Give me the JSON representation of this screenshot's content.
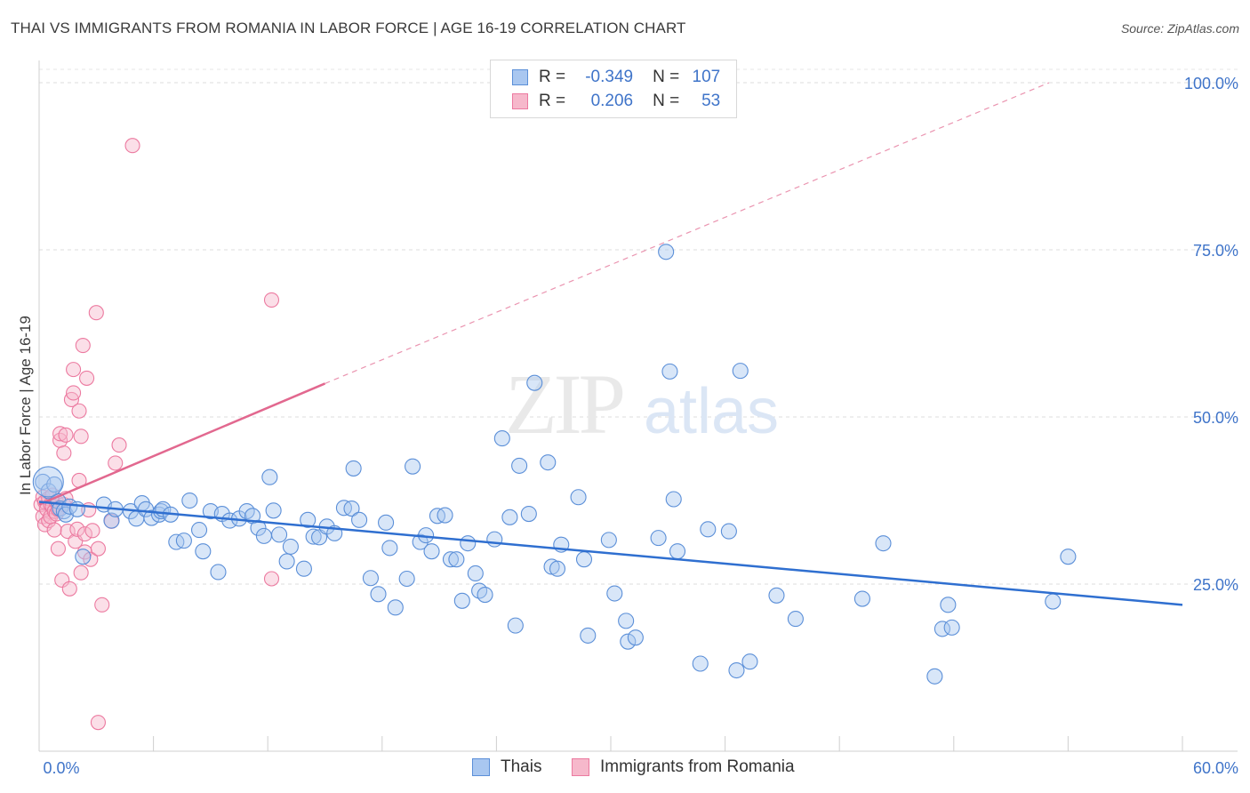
{
  "title": "THAI VS IMMIGRANTS FROM ROMANIA IN LABOR FORCE | AGE 16-19 CORRELATION CHART",
  "source": "Source: ZipAtlas.com",
  "watermark": {
    "zip": "ZIP",
    "atlas": "atlas"
  },
  "legend": {
    "rows": [
      {
        "r_label": "R =",
        "r_value": "-0.349",
        "n_label": "N =",
        "n_value": "107"
      },
      {
        "r_label": "R =",
        "r_value": "0.206",
        "n_label": "N =",
        "n_value": "53"
      }
    ]
  },
  "bottom_legend": {
    "thais": "Thais",
    "romania": "Immigrants from Romania"
  },
  "colors": {
    "blue_fill": "#a9c7f0",
    "blue_stroke": "#5b8fd8",
    "blue_line": "#2f6fd0",
    "pink_fill": "#f6b8cb",
    "pink_stroke": "#ec7aa0",
    "pink_line": "#e2688f"
  },
  "chart_data": {
    "type": "scatter",
    "title": "THAI VS IMMIGRANTS FROM ROMANIA IN LABOR FORCE | AGE 16-19 CORRELATION CHART",
    "xlabel": "",
    "ylabel": "In Labor Force | Age 16-19",
    "xlim": [
      0,
      60
    ],
    "ylim": [
      0,
      102
    ],
    "x_tick_labels": [
      "0.0%",
      "60.0%"
    ],
    "y_ticks": [
      25,
      50,
      75,
      100
    ],
    "y_tick_labels": [
      "25.0%",
      "50.0%",
      "75.0%",
      "100.0%"
    ],
    "grid": true,
    "legend_position": "top-center",
    "series": [
      {
        "name": "Thais",
        "r": -0.349,
        "n": 107,
        "trend": {
          "x": [
            0,
            60
          ],
          "y": [
            37.3,
            21.9
          ]
        },
        "points": [
          [
            0.2,
            40.3
          ],
          [
            0.5,
            38.9
          ],
          [
            0.8,
            39.9
          ],
          [
            1.0,
            37.4
          ],
          [
            1.1,
            36.3
          ],
          [
            1.3,
            35.9
          ],
          [
            1.4,
            35.4
          ],
          [
            1.6,
            36.6
          ],
          [
            2.0,
            36.2
          ],
          [
            2.3,
            29.1
          ],
          [
            3.4,
            36.9
          ],
          [
            3.8,
            34.5
          ],
          [
            4.0,
            36.2
          ],
          [
            4.8,
            35.9
          ],
          [
            5.1,
            34.8
          ],
          [
            5.4,
            37.1
          ],
          [
            5.6,
            36.2
          ],
          [
            5.9,
            34.9
          ],
          [
            6.3,
            35.4
          ],
          [
            6.4,
            35.9
          ],
          [
            6.5,
            36.2
          ],
          [
            6.9,
            35.4
          ],
          [
            7.2,
            31.3
          ],
          [
            7.6,
            31.5
          ],
          [
            7.9,
            37.5
          ],
          [
            8.4,
            33.1
          ],
          [
            8.6,
            29.9
          ],
          [
            9.0,
            35.9
          ],
          [
            9.4,
            26.8
          ],
          [
            9.6,
            35.5
          ],
          [
            10.0,
            34.5
          ],
          [
            10.5,
            34.8
          ],
          [
            10.9,
            35.9
          ],
          [
            11.2,
            35.2
          ],
          [
            11.5,
            33.4
          ],
          [
            11.8,
            32.2
          ],
          [
            12.1,
            41.0
          ],
          [
            12.3,
            36.0
          ],
          [
            12.6,
            32.4
          ],
          [
            13.0,
            28.4
          ],
          [
            13.2,
            30.6
          ],
          [
            13.9,
            27.3
          ],
          [
            14.1,
            34.6
          ],
          [
            14.4,
            32.1
          ],
          [
            14.7,
            32.0
          ],
          [
            15.1,
            33.6
          ],
          [
            15.5,
            32.6
          ],
          [
            16.0,
            36.4
          ],
          [
            16.4,
            36.3
          ],
          [
            16.5,
            42.3
          ],
          [
            16.8,
            34.6
          ],
          [
            17.4,
            25.9
          ],
          [
            17.8,
            23.5
          ],
          [
            18.2,
            34.2
          ],
          [
            18.4,
            30.4
          ],
          [
            18.7,
            21.5
          ],
          [
            19.3,
            25.8
          ],
          [
            19.6,
            42.6
          ],
          [
            20.0,
            31.3
          ],
          [
            20.3,
            32.3
          ],
          [
            20.6,
            29.9
          ],
          [
            20.9,
            35.2
          ],
          [
            21.3,
            35.3
          ],
          [
            21.6,
            28.7
          ],
          [
            21.9,
            28.7
          ],
          [
            22.2,
            22.5
          ],
          [
            22.5,
            31.1
          ],
          [
            22.9,
            26.6
          ],
          [
            23.1,
            24.0
          ],
          [
            23.4,
            23.4
          ],
          [
            23.9,
            31.7
          ],
          [
            24.3,
            46.8
          ],
          [
            24.7,
            35.0
          ],
          [
            25.0,
            18.8
          ],
          [
            25.2,
            42.7
          ],
          [
            25.7,
            35.5
          ],
          [
            26.0,
            55.1
          ],
          [
            26.7,
            43.2
          ],
          [
            26.9,
            27.6
          ],
          [
            27.2,
            27.3
          ],
          [
            27.4,
            30.9
          ],
          [
            28.3,
            38.0
          ],
          [
            28.6,
            28.7
          ],
          [
            28.8,
            17.3
          ],
          [
            29.9,
            31.6
          ],
          [
            30.2,
            23.6
          ],
          [
            30.8,
            19.5
          ],
          [
            30.9,
            16.4
          ],
          [
            31.3,
            17.0
          ],
          [
            32.5,
            31.9
          ],
          [
            32.9,
            74.7
          ],
          [
            33.1,
            56.8
          ],
          [
            33.3,
            37.7
          ],
          [
            33.5,
            29.9
          ],
          [
            34.7,
            13.1
          ],
          [
            35.1,
            33.2
          ],
          [
            36.2,
            32.9
          ],
          [
            36.6,
            12.1
          ],
          [
            36.8,
            56.9
          ],
          [
            37.3,
            13.4
          ],
          [
            38.7,
            23.3
          ],
          [
            39.7,
            19.8
          ],
          [
            43.2,
            22.8
          ],
          [
            44.3,
            31.1
          ],
          [
            47.0,
            11.2
          ],
          [
            47.4,
            18.3
          ],
          [
            47.7,
            21.9
          ],
          [
            47.9,
            18.5
          ],
          [
            53.2,
            22.4
          ],
          [
            54.0,
            29.1
          ]
        ]
      },
      {
        "name": "Immigrants from Romania",
        "r": 0.206,
        "n": 53,
        "trend": {
          "x": [
            0,
            15
          ],
          "y": [
            36.9,
            55.0
          ]
        },
        "trend_extension": {
          "x": [
            15,
            53
          ],
          "y": [
            55.0,
            100.0
          ]
        },
        "points": [
          [
            0.1,
            36.9
          ],
          [
            0.2,
            35.1
          ],
          [
            0.2,
            38.0
          ],
          [
            0.3,
            37.3
          ],
          [
            0.3,
            33.9
          ],
          [
            0.4,
            36.2
          ],
          [
            0.5,
            34.5
          ],
          [
            0.5,
            37.8
          ],
          [
            0.6,
            36.9
          ],
          [
            0.6,
            35.1
          ],
          [
            0.7,
            36.6
          ],
          [
            0.7,
            38.3
          ],
          [
            0.8,
            35.9
          ],
          [
            0.8,
            33.1
          ],
          [
            0.9,
            37.3
          ],
          [
            0.9,
            35.5
          ],
          [
            1.0,
            36.2
          ],
          [
            1.0,
            30.3
          ],
          [
            1.1,
            46.5
          ],
          [
            1.1,
            47.5
          ],
          [
            1.2,
            25.6
          ],
          [
            1.3,
            44.6
          ],
          [
            1.3,
            36.9
          ],
          [
            1.4,
            37.8
          ],
          [
            1.4,
            47.3
          ],
          [
            1.5,
            32.9
          ],
          [
            1.6,
            24.3
          ],
          [
            1.7,
            52.6
          ],
          [
            1.8,
            53.6
          ],
          [
            1.8,
            57.1
          ],
          [
            1.9,
            31.4
          ],
          [
            2.0,
            33.2
          ],
          [
            2.1,
            50.9
          ],
          [
            2.1,
            40.5
          ],
          [
            2.2,
            47.1
          ],
          [
            2.2,
            26.7
          ],
          [
            2.3,
            60.7
          ],
          [
            2.4,
            29.8
          ],
          [
            2.4,
            32.5
          ],
          [
            2.5,
            55.8
          ],
          [
            2.6,
            36.1
          ],
          [
            2.7,
            28.7
          ],
          [
            2.8,
            33.0
          ],
          [
            3.0,
            65.6
          ],
          [
            3.1,
            4.3
          ],
          [
            3.1,
            30.3
          ],
          [
            3.3,
            21.9
          ],
          [
            3.8,
            34.4
          ],
          [
            4.0,
            43.1
          ],
          [
            4.2,
            45.8
          ],
          [
            4.9,
            90.6
          ],
          [
            12.2,
            67.5
          ],
          [
            12.2,
            25.8
          ]
        ]
      }
    ]
  }
}
